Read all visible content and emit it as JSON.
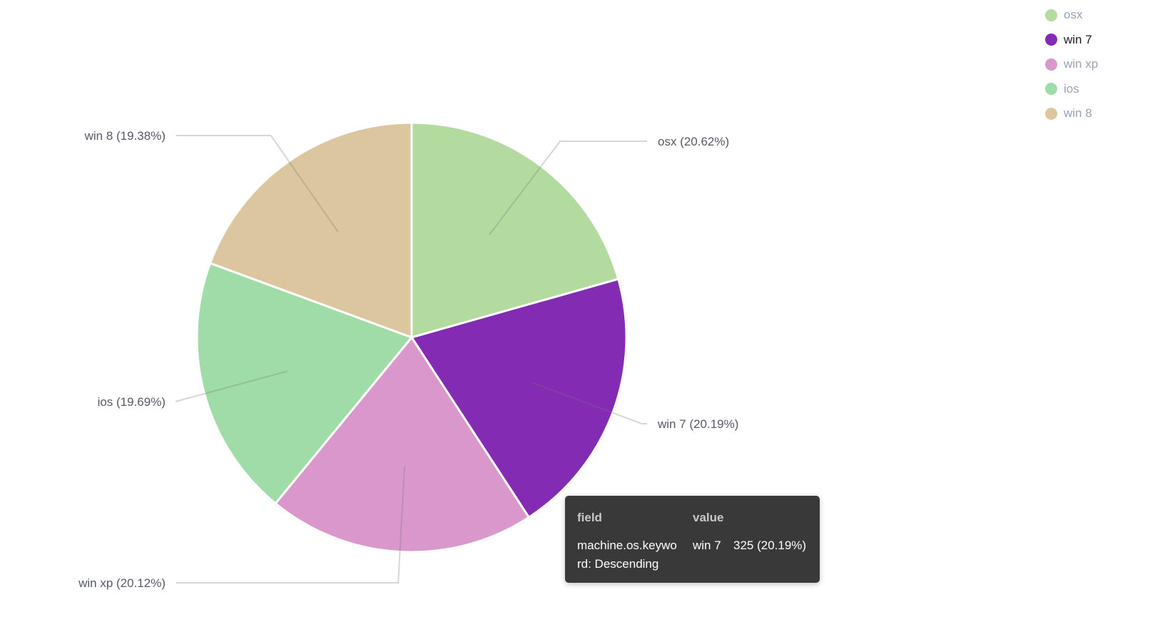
{
  "chart_data": {
    "type": "pie",
    "start_angle": "top, clockwise",
    "slices": [
      {
        "label": "osx",
        "percent": 20.62,
        "color": "#b3dba0",
        "label_text": "osx (20.62%)"
      },
      {
        "label": "win 7",
        "percent": 20.19,
        "color": "#842bb3",
        "label_text": "win 7 (20.19%)"
      },
      {
        "label": "win xp",
        "percent": 20.12,
        "color": "#da97cb",
        "label_text": "win xp (20.12%)"
      },
      {
        "label": "ios",
        "percent": 19.69,
        "color": "#a0dca8",
        "label_text": "ios (19.69%)"
      },
      {
        "label": "win 8",
        "percent": 19.38,
        "color": "#dbc69f",
        "label_text": "win 8 (19.38%)"
      }
    ],
    "legend_position": "top-right",
    "legend_highlighted": "win 7"
  },
  "tooltip": {
    "header_field": "field",
    "header_value": "value",
    "field": "machine.os.keyword: Descending",
    "field_line1": "machine.os.keywo",
    "field_line2": "rd: Descending",
    "value_term": "win 7",
    "value_count": "325 (20.19%)"
  }
}
